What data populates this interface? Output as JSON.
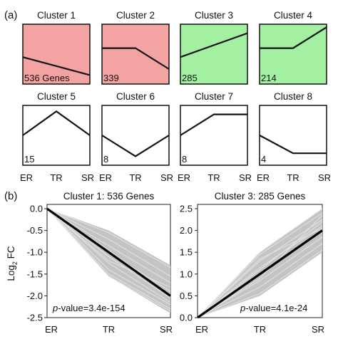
{
  "panel_labels": {
    "a": "(a)",
    "b": "(b)"
  },
  "x_stages": [
    "ER",
    "TR",
    "SR"
  ],
  "clusters": [
    {
      "title": "Cluster 1",
      "count_label": "536 Genes",
      "color": "#f4a3a3"
    },
    {
      "title": "Cluster 2",
      "count_label": "339",
      "color": "#f4a3a3"
    },
    {
      "title": "Cluster 3",
      "count_label": "285",
      "color": "#a3f0a3"
    },
    {
      "title": "Cluster 4",
      "count_label": "214",
      "color": "#a3f0a3"
    },
    {
      "title": "Cluster 5",
      "count_label": "15",
      "color": "#ffffff"
    },
    {
      "title": "Cluster 6",
      "count_label": "8",
      "color": "#ffffff"
    },
    {
      "title": "Cluster 7",
      "count_label": "8",
      "color": "#ffffff"
    },
    {
      "title": "Cluster 8",
      "count_label": "4",
      "color": "#ffffff"
    }
  ],
  "chart_data": [
    {
      "type": "line",
      "title": "Cluster 1",
      "categories": [
        "ER",
        "TR",
        "SR"
      ],
      "values": [
        0.45,
        0.3,
        0.15
      ],
      "ylim": [
        0,
        1
      ]
    },
    {
      "type": "line",
      "title": "Cluster 2",
      "categories": [
        "ER",
        "TR",
        "SR"
      ],
      "values": [
        0.6,
        0.6,
        0.25
      ],
      "ylim": [
        0,
        1
      ]
    },
    {
      "type": "line",
      "title": "Cluster 3",
      "categories": [
        "ER",
        "TR",
        "SR"
      ],
      "values": [
        0.45,
        0.65,
        0.85
      ],
      "ylim": [
        0,
        1
      ]
    },
    {
      "type": "line",
      "title": "Cluster 4",
      "categories": [
        "ER",
        "TR",
        "SR"
      ],
      "values": [
        0.6,
        0.6,
        0.95
      ],
      "ylim": [
        0,
        1
      ]
    },
    {
      "type": "line",
      "title": "Cluster 5",
      "categories": [
        "ER",
        "TR",
        "SR"
      ],
      "values": [
        0.5,
        0.9,
        0.5
      ],
      "ylim": [
        0,
        1
      ]
    },
    {
      "type": "line",
      "title": "Cluster 6",
      "categories": [
        "ER",
        "TR",
        "SR"
      ],
      "values": [
        0.5,
        0.15,
        0.5
      ],
      "ylim": [
        0,
        1
      ]
    },
    {
      "type": "line",
      "title": "Cluster 7",
      "categories": [
        "ER",
        "TR",
        "SR"
      ],
      "values": [
        0.5,
        0.85,
        0.85
      ],
      "ylim": [
        0,
        1
      ]
    },
    {
      "type": "line",
      "title": "Cluster 8",
      "categories": [
        "ER",
        "TR",
        "SR"
      ],
      "values": [
        0.5,
        0.2,
        0.2
      ],
      "ylim": [
        0,
        1
      ]
    },
    {
      "type": "line",
      "title": "Cluster 1: 536 Genes",
      "ylabel_main": "Log",
      "ylabel_sub": "2",
      "ylabel_rest": " FC",
      "categories": [
        "ER",
        "TR",
        "SR"
      ],
      "ylim": [
        -2.5,
        0.0
      ],
      "yticks": [
        0.0,
        -0.5,
        -1.0,
        -1.5,
        -2.0,
        -2.5
      ],
      "ytick_labels": [
        "0.0",
        "-0.5",
        "-1.0",
        "-1.5",
        "-2.0",
        "-2.5"
      ],
      "band_top": [
        0.0,
        -0.5,
        -1.3
      ],
      "band_bottom": [
        0.0,
        -1.55,
        -2.4
      ],
      "gene_lines": [
        [
          0.0,
          -0.55,
          -1.35
        ],
        [
          0.0,
          -0.7,
          -1.55
        ],
        [
          0.0,
          -0.85,
          -1.7
        ],
        [
          0.0,
          -1.0,
          -1.9
        ],
        [
          0.0,
          -1.1,
          -2.05
        ],
        [
          0.0,
          -1.25,
          -2.15
        ],
        [
          0.0,
          -1.4,
          -2.2
        ],
        [
          0.0,
          -1.5,
          -2.3
        ],
        [
          0.0,
          -1.55,
          -2.35
        ],
        [
          0.0,
          -0.95,
          -2.0
        ],
        [
          0.0,
          -1.2,
          -1.8
        ]
      ],
      "mean": [
        0.0,
        -1.0,
        -2.0
      ],
      "annotation_prefix": "p",
      "annotation_rest": "-value=3.4e-154"
    },
    {
      "type": "line",
      "title": "Cluster 3: 285 Genes",
      "categories": [
        "ER",
        "TR",
        "SR"
      ],
      "ylim": [
        0.0,
        2.5
      ],
      "yticks": [
        0.0,
        0.5,
        1.0,
        1.5,
        2.0,
        2.5
      ],
      "ytick_labels": [
        "0.0",
        "0.5",
        "1.0",
        "1.5",
        "2.0",
        "2.5"
      ],
      "band_top": [
        0.0,
        1.5,
        2.5
      ],
      "band_bottom": [
        0.0,
        0.5,
        1.5
      ],
      "gene_lines": [
        [
          0.0,
          0.55,
          1.55
        ],
        [
          0.0,
          0.7,
          1.7
        ],
        [
          0.0,
          0.85,
          1.85
        ],
        [
          0.0,
          1.0,
          2.0
        ],
        [
          0.0,
          1.15,
          2.1
        ],
        [
          0.0,
          1.3,
          2.25
        ],
        [
          0.0,
          1.45,
          2.4
        ],
        [
          0.0,
          1.5,
          2.5
        ],
        [
          0.0,
          1.1,
          2.2
        ],
        [
          0.0,
          0.9,
          2.35
        ],
        [
          0.0,
          1.35,
          2.05
        ]
      ],
      "mean": [
        0.0,
        1.0,
        2.0
      ],
      "annotation_prefix": "p",
      "annotation_rest": "-value=4.1e-24"
    }
  ]
}
